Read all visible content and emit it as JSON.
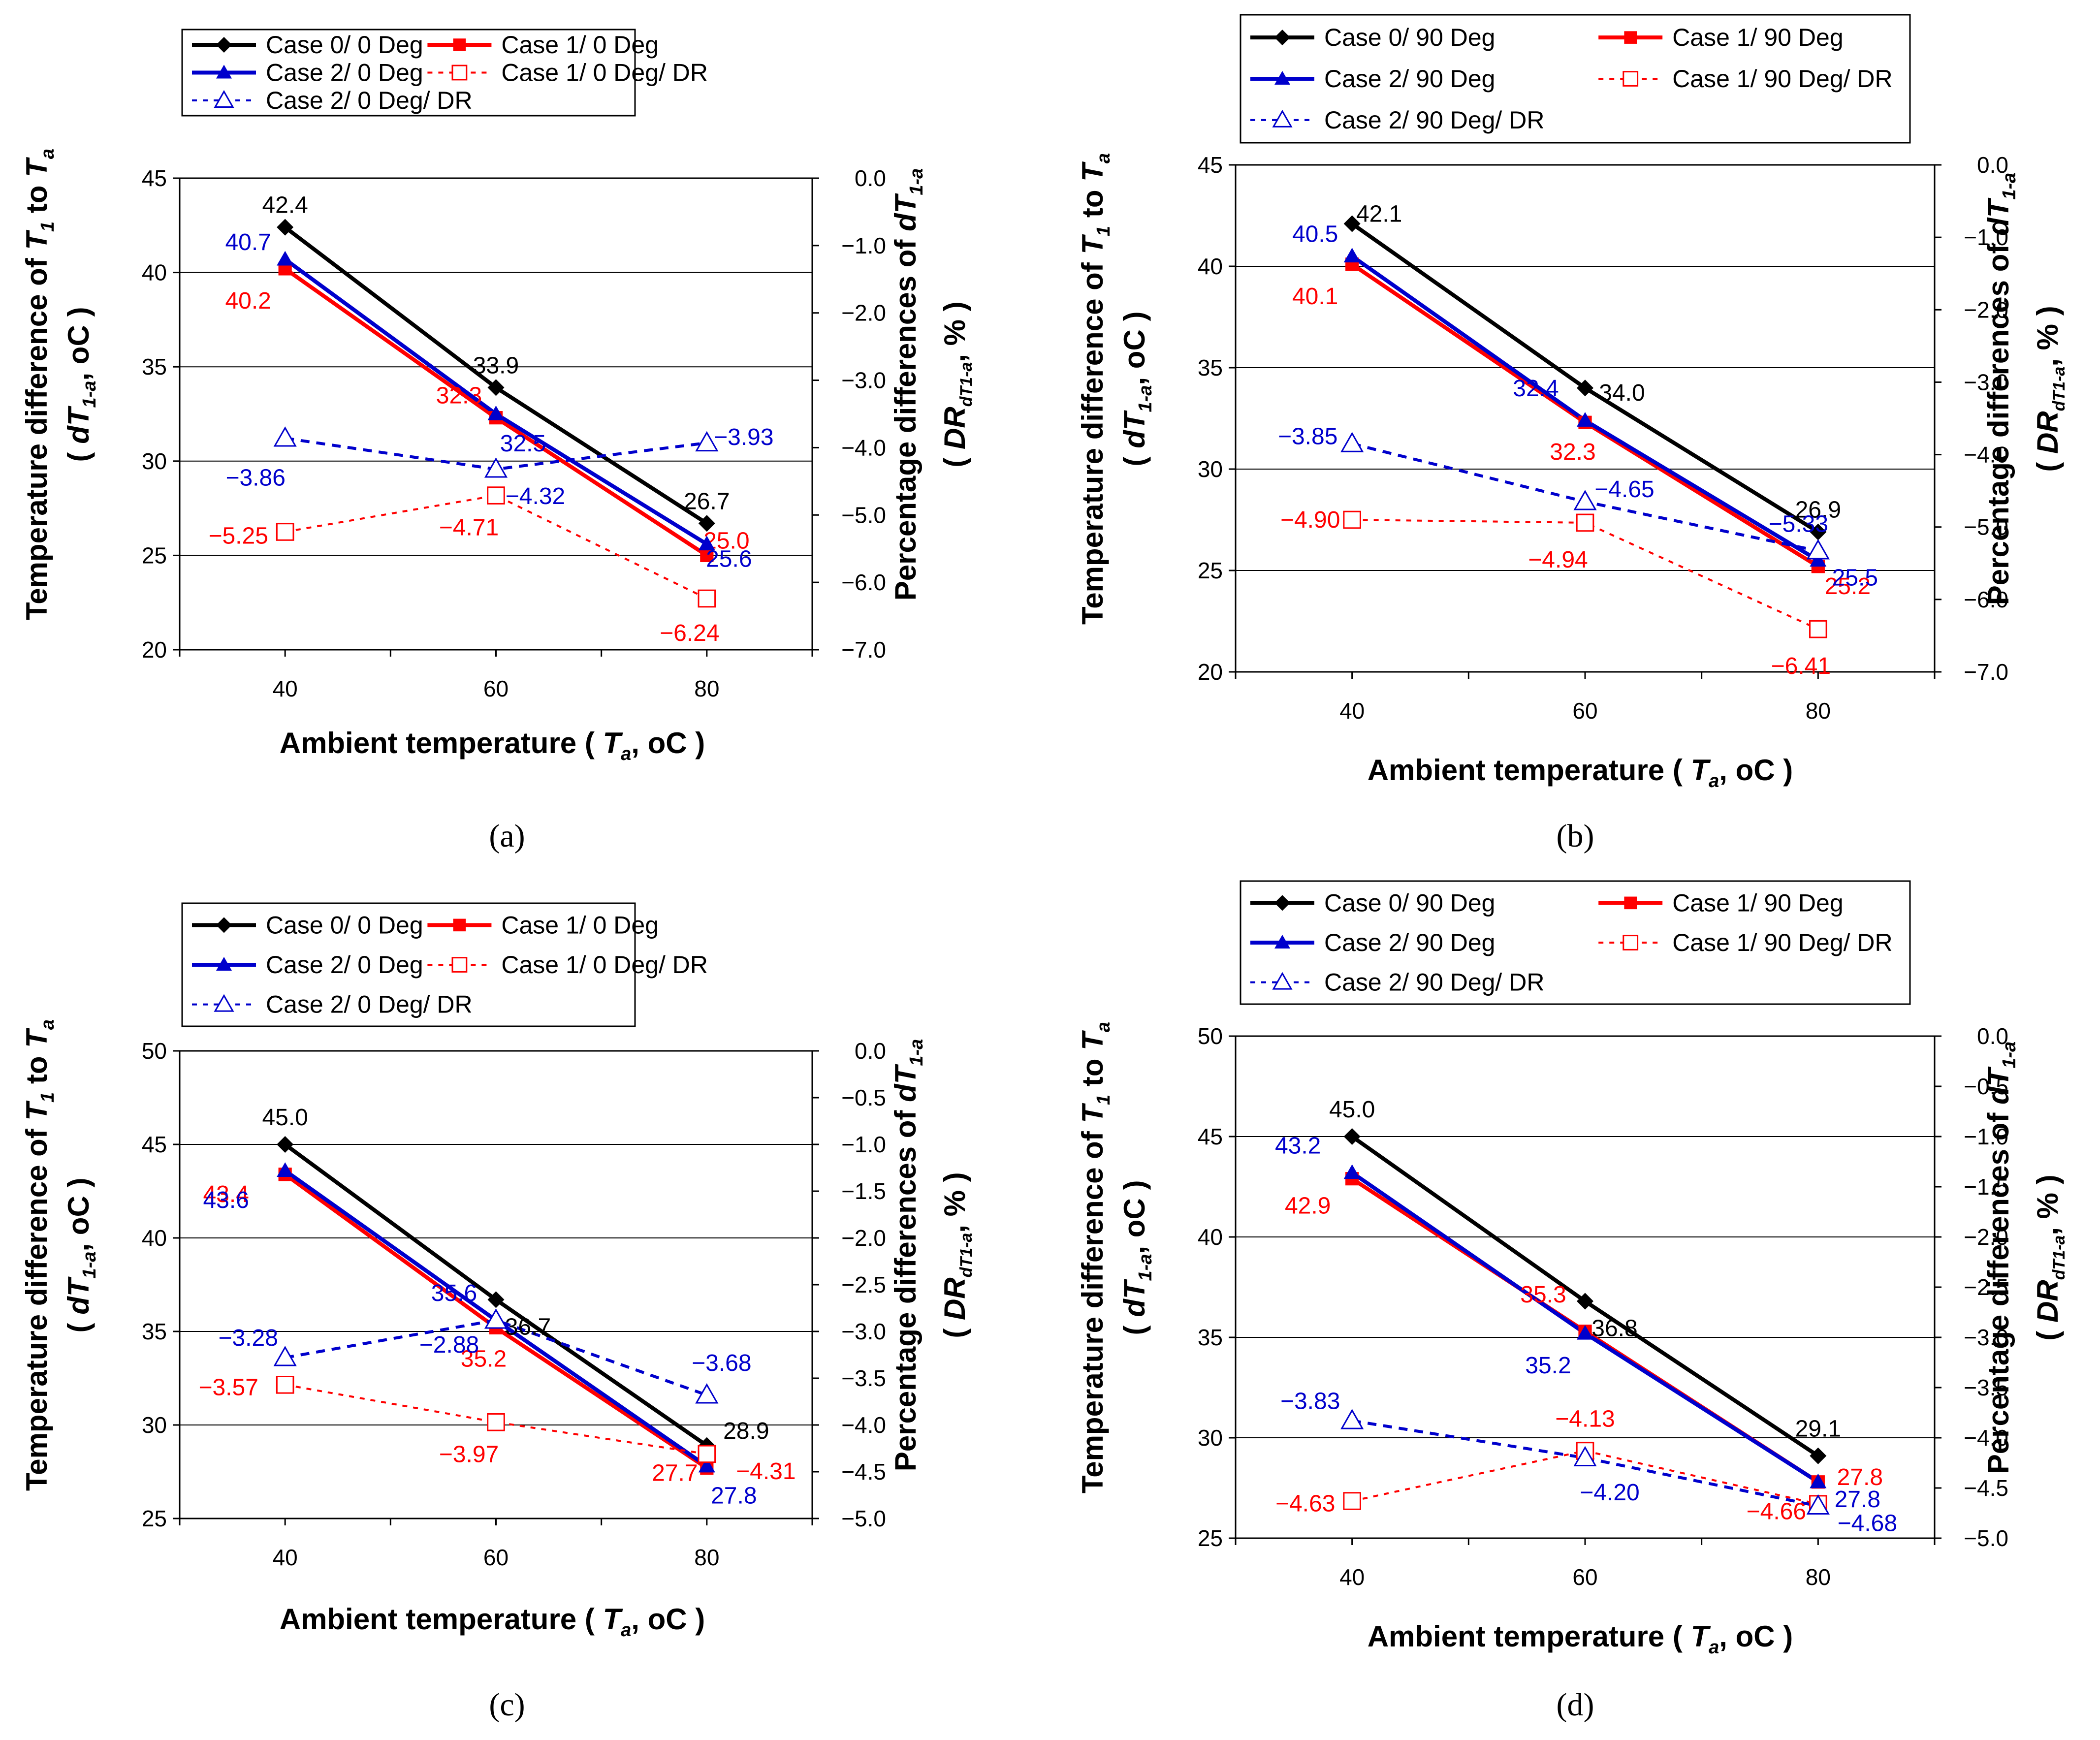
{
  "chart_data": [
    {
      "type": "line",
      "caption": "(a)",
      "x": [
        40,
        60,
        80
      ],
      "xlabel": {
        "pre": "Ambient temperature ( ",
        "var": "T",
        "sub": "a",
        "post": ", ",
        "unit": "oC )"
      },
      "ylabel": {
        "pre": "Temperature difference of ",
        "var1": "T",
        "sub1": "1",
        "mid": " to ",
        "var2": "T",
        "sub2": "a",
        "line2_pre": "( ",
        "var3": "dT",
        "sub3": "1-a",
        "line2_post": ", oC )"
      },
      "y2label": {
        "pre": "Percentage differences of ",
        "var1": "dT",
        "sub1": "1-a",
        "line2_pre": "( ",
        "var2": "DR",
        "sub2": "dT1-a",
        "line2_post": ", % )"
      },
      "xticks": [
        "40",
        "60",
        "80"
      ],
      "ylim": [
        20,
        45
      ],
      "yticks": [
        "20",
        "25",
        "30",
        "35",
        "40",
        "45"
      ],
      "y2lim": [
        -7.0,
        0.0
      ],
      "y2ticks": [
        "0.0",
        "−1.0",
        "−2.0",
        "−3.0",
        "−4.0",
        "−5.0",
        "−6.0",
        "−7.0"
      ],
      "legend": {
        "placement": "top",
        "entries": [
          "Case 0/ 0 Deg",
          "Case 1/ 0 Deg",
          "Case 2/ 0 Deg",
          "Case 1/ 0 Deg/ DR",
          "Case 2/ 0 Deg/ DR"
        ]
      },
      "series": [
        {
          "name": "Case 0/ 0 Deg",
          "axis": "left",
          "values": [
            42.4,
            33.9,
            26.7
          ],
          "labels": [
            "42.4",
            "33.9",
            "26.7"
          ]
        },
        {
          "name": "Case 1/ 0 Deg",
          "axis": "left",
          "values": [
            40.2,
            32.3,
            25.0
          ],
          "labels": [
            "40.2",
            "32.3",
            "25.0"
          ]
        },
        {
          "name": "Case 2/ 0 Deg",
          "axis": "left",
          "values": [
            40.7,
            32.5,
            25.6
          ],
          "labels": [
            "40.7",
            "32.5",
            "25.6"
          ]
        },
        {
          "name": "Case 1/ 0 Deg/ DR",
          "axis": "right",
          "values": [
            -5.25,
            -4.71,
            -6.24
          ],
          "labels": [
            "−5.25",
            "−4.71",
            "−6.24"
          ]
        },
        {
          "name": "Case 2/ 0 Deg/ DR",
          "axis": "right",
          "values": [
            -3.86,
            -4.32,
            -3.93
          ],
          "labels": [
            "−3.86",
            "−4.32",
            "−3.93"
          ]
        }
      ]
    },
    {
      "type": "line",
      "caption": "(b)",
      "x": [
        40,
        60,
        80
      ],
      "xlabel": {
        "pre": "Ambient temperature ( ",
        "var": "T",
        "sub": "a",
        "post": ", ",
        "unit": "oC )"
      },
      "ylabel": {
        "pre": "Temperature difference of ",
        "var1": "T",
        "sub1": "1",
        "mid": " to ",
        "var2": "T",
        "sub2": "a",
        "line2_pre": "( ",
        "var3": "dT",
        "sub3": "1-a",
        "line2_post": ", oC )"
      },
      "y2label": {
        "pre": "Percentage differences of ",
        "var1": "dT",
        "sub1": "1-a",
        "line2_pre": "( ",
        "var2": "DR",
        "sub2": "dT1-a",
        "line2_post": ", % )"
      },
      "xticks": [
        "40",
        "60",
        "80"
      ],
      "ylim": [
        20,
        45
      ],
      "yticks": [
        "20",
        "25",
        "30",
        "35",
        "40",
        "45"
      ],
      "y2lim": [
        -7.0,
        0.0
      ],
      "y2ticks": [
        "0.0",
        "−1.0",
        "−2.0",
        "−3.0",
        "−4.0",
        "−5.0",
        "−6.0",
        "−7.0"
      ],
      "legend": {
        "placement": "top",
        "entries": [
          "Case 0/ 90 Deg",
          "Case 1/ 90 Deg",
          "Case 2/ 90 Deg",
          "Case 1/ 90 Deg/ DR",
          "Case 2/ 90 Deg/ DR"
        ]
      },
      "series": [
        {
          "name": "Case 0/ 90 Deg",
          "axis": "left",
          "values": [
            42.1,
            34.0,
            26.9
          ],
          "labels": [
            "42.1",
            "34.0",
            "26.9"
          ]
        },
        {
          "name": "Case 1/ 90 Deg",
          "axis": "left",
          "values": [
            40.1,
            32.3,
            25.2
          ],
          "labels": [
            "40.1",
            "32.3",
            "25.2"
          ]
        },
        {
          "name": "Case 2/ 90 Deg",
          "axis": "left",
          "values": [
            40.5,
            32.4,
            25.5
          ],
          "labels": [
            "40.5",
            "32.4",
            "25.5"
          ]
        },
        {
          "name": "Case 1/ 90 Deg/ DR",
          "axis": "right",
          "values": [
            -4.9,
            -4.94,
            -6.41
          ],
          "labels": [
            "−4.90",
            "−4.94",
            "−6.41"
          ]
        },
        {
          "name": "Case 2/ 90 Deg/ DR",
          "axis": "right",
          "values": [
            -3.85,
            -4.65,
            -5.33
          ],
          "labels": [
            "−3.85",
            "−4.65",
            "−5.33"
          ]
        }
      ]
    },
    {
      "type": "line",
      "caption": "(c)",
      "x": [
        40,
        60,
        80
      ],
      "xlabel": {
        "pre": "Ambient temperature ( ",
        "var": "T",
        "sub": "a",
        "post": ", ",
        "unit": "oC )"
      },
      "ylabel": {
        "pre": "Temperature difference of ",
        "var1": "T",
        "sub1": "1",
        "mid": " to ",
        "var2": "T",
        "sub2": "a",
        "line2_pre": "( ",
        "var3": "dT",
        "sub3": "1-a",
        "line2_post": ", oC )"
      },
      "y2label": {
        "pre": "Percentage differences of ",
        "var1": "dT",
        "sub1": "1-a",
        "line2_pre": "( ",
        "var2": "DR",
        "sub2": "dT1-a",
        "line2_post": ", % )"
      },
      "xticks": [
        "40",
        "60",
        "80"
      ],
      "ylim": [
        25,
        50
      ],
      "yticks": [
        "25",
        "30",
        "35",
        "40",
        "45",
        "50"
      ],
      "y2lim": [
        -5.0,
        0.0
      ],
      "y2ticks": [
        "0.0",
        "−0.5",
        "−1.0",
        "−1.5",
        "−2.0",
        "−2.5",
        "−3.0",
        "−3.5",
        "−4.0",
        "−4.5",
        "−5.0"
      ],
      "legend": {
        "placement": "top",
        "entries": [
          "Case 0/ 0 Deg",
          "Case 1/ 0 Deg",
          "Case 2/ 0 Deg",
          "Case 1/ 0 Deg/ DR",
          "Case 2/ 0 Deg/ DR"
        ]
      },
      "series": [
        {
          "name": "Case 0/ 0 Deg",
          "axis": "left",
          "values": [
            45.0,
            36.7,
            28.9
          ],
          "labels": [
            "45.0",
            "36.7",
            "28.9"
          ]
        },
        {
          "name": "Case 1/ 0 Deg",
          "axis": "left",
          "values": [
            43.4,
            35.2,
            27.7
          ],
          "labels": [
            "43.4",
            "35.2",
            "27.7"
          ]
        },
        {
          "name": "Case 2/ 0 Deg",
          "axis": "left",
          "values": [
            43.6,
            35.6,
            27.8
          ],
          "labels": [
            "43.6",
            "35.6",
            "27.8"
          ]
        },
        {
          "name": "Case 1/ 0 Deg/ DR",
          "axis": "right",
          "values": [
            -3.57,
            -3.97,
            -4.31
          ],
          "labels": [
            "−3.57",
            "−3.97",
            "−4.31"
          ]
        },
        {
          "name": "Case 2/ 0 Deg/ DR",
          "axis": "right",
          "values": [
            -3.28,
            -2.88,
            -3.68
          ],
          "labels": [
            "−3.28",
            "−2.88",
            "−3.68"
          ]
        }
      ]
    },
    {
      "type": "line",
      "caption": "(d)",
      "x": [
        40,
        60,
        80
      ],
      "xlabel": {
        "pre": "Ambient temperature ( ",
        "var": "T",
        "sub": "a",
        "post": ", ",
        "unit": "oC )"
      },
      "ylabel": {
        "pre": "Temperature difference of ",
        "var1": "T",
        "sub1": "1",
        "mid": " to ",
        "var2": "T",
        "sub2": "a",
        "line2_pre": "( ",
        "var3": "dT",
        "sub3": "1-a",
        "line2_post": ", oC )"
      },
      "y2label": {
        "pre": "Percentage differences of ",
        "var1": "dT",
        "sub1": "1-a",
        "line2_pre": "( ",
        "var2": "DR",
        "sub2": "dT1-a",
        "line2_post": ", % )"
      },
      "xticks": [
        "40",
        "60",
        "80"
      ],
      "ylim": [
        25,
        50
      ],
      "yticks": [
        "25",
        "30",
        "35",
        "40",
        "45",
        "50"
      ],
      "y2lim": [
        -5.0,
        0.0
      ],
      "y2ticks": [
        "0.0",
        "−0.5",
        "−1.0",
        "−1.5",
        "−2.0",
        "−2.5",
        "−3.0",
        "−3.5",
        "−4.0",
        "−4.5",
        "−5.0"
      ],
      "legend": {
        "placement": "top",
        "entries": [
          "Case 0/ 90 Deg",
          "Case 1/ 90 Deg",
          "Case 2/ 90 Deg",
          "Case 1/ 90 Deg/ DR",
          "Case 2/ 90 Deg/ DR"
        ]
      },
      "series": [
        {
          "name": "Case 0/ 90 Deg",
          "axis": "left",
          "values": [
            45.0,
            36.8,
            29.1
          ],
          "labels": [
            "45.0",
            "36.8",
            "29.1"
          ]
        },
        {
          "name": "Case 1/ 90 Deg",
          "axis": "left",
          "values": [
            42.9,
            35.3,
            27.8
          ],
          "labels": [
            "42.9",
            "35.3",
            "27.8"
          ]
        },
        {
          "name": "Case 2/ 90 Deg",
          "axis": "left",
          "values": [
            43.2,
            35.2,
            27.8
          ],
          "labels": [
            "43.2",
            "35.2",
            "27.8"
          ]
        },
        {
          "name": "Case 1/ 90 Deg/ DR",
          "axis": "right",
          "values": [
            -4.63,
            -4.13,
            -4.66
          ],
          "labels": [
            "−4.63",
            "−4.13",
            "−4.66"
          ]
        },
        {
          "name": "Case 2/ 90 Deg/ DR",
          "axis": "right",
          "values": [
            -3.83,
            -4.2,
            -4.68
          ],
          "labels": [
            "−3.83",
            "−4.20",
            "−4.68"
          ]
        }
      ]
    }
  ],
  "colors": {
    "case0": "#000000",
    "case1": "#ff0000",
    "case2": "#0000cc",
    "grid": "#000000"
  }
}
